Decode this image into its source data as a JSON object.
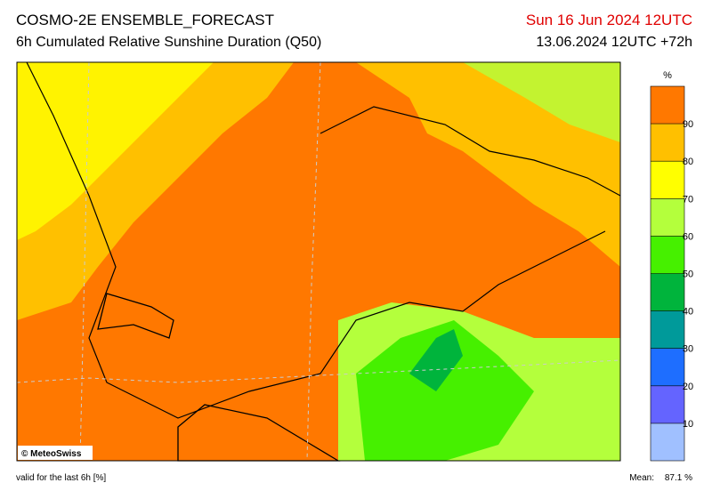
{
  "header": {
    "title": "COSMO-2E ENSEMBLE_FORECAST",
    "subtitle": "6h Cumulated Relative Sunshine Duration (Q50)",
    "valid_date": "Sun 16 Jun 2024 12UTC",
    "run": "13.06.2024 12UTC +72h"
  },
  "legend": {
    "unit": "%",
    "labels": [
      "10",
      "20",
      "30",
      "40",
      "50",
      "60",
      "70",
      "80",
      "90"
    ],
    "colors": [
      "#a0c0ff",
      "#6464ff",
      "#1e6eff",
      "#009a9a",
      "#00b43c",
      "#46f000",
      "#b4ff3c",
      "#ffff00",
      "#ffc000",
      "#ff7800"
    ]
  },
  "credit": "© MeteoSwiss",
  "footer": {
    "note": "valid for the last 6h [%]",
    "mean_label": "Mean:",
    "mean_value": "87.1 %"
  }
}
